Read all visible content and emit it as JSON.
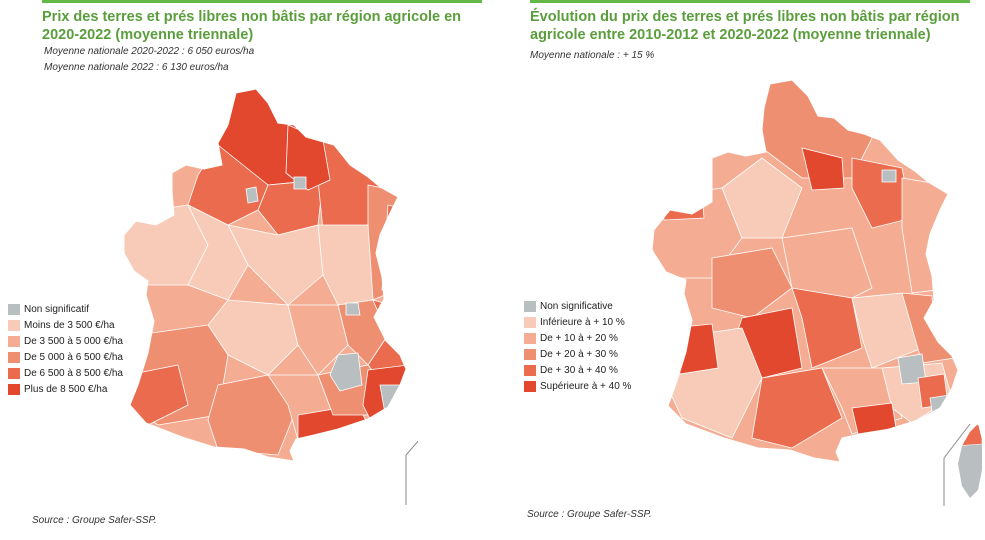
{
  "left": {
    "title": "Prix des terres et prés libres non bâtis par région agricole en 2020-2022 (moyenne triennale)",
    "subtitle1": "Moyenne nationale 2020-2022 : 6 050 euros/ha",
    "subtitle2": "Moyenne nationale 2022 : 6 130 euros/ha",
    "legend": [
      {
        "label": "Non significatif",
        "color": "#b9bec1"
      },
      {
        "label": "Moins de 3 500 €/ha",
        "color": "#f7cbb7"
      },
      {
        "label": "De 3 500 à 5 000 €/ha",
        "color": "#f4ad93"
      },
      {
        "label": "De 5 000 à 6 500 €/ha",
        "color": "#ef8f71"
      },
      {
        "label": "De 6 500 à 8 500 €/ha",
        "color": "#ea6b4d"
      },
      {
        "label": "Plus de 8 500 €/ha",
        "color": "#e2482e"
      }
    ],
    "source": "Source : Groupe Safer-SSP."
  },
  "right": {
    "title": "Évolution du prix des terres et prés libres non bâtis par région agricole entre 2010-2012 et 2020-2022 (moyenne triennale)",
    "subtitle1": "Moyenne nationale : + 15 %",
    "legend": [
      {
        "label": "Non significative",
        "color": "#b9bec1"
      },
      {
        "label": "Inférieure à + 10 %",
        "color": "#f7cbb7"
      },
      {
        "label": "De + 10 à + 20 %",
        "color": "#f4ad93"
      },
      {
        "label": "De + 20 à + 30 %",
        "color": "#ef8f71"
      },
      {
        "label": "De + 30 à + 40 %",
        "color": "#ea6b4d"
      },
      {
        "label": "Supérieure à + 40 %",
        "color": "#e2482e"
      }
    ],
    "source": "Source : Groupe Safer-SSP."
  },
  "colors": {
    "title_green": "#5a9e3c",
    "not_significant": "#b9bec1",
    "region_border": "#ffffff"
  }
}
